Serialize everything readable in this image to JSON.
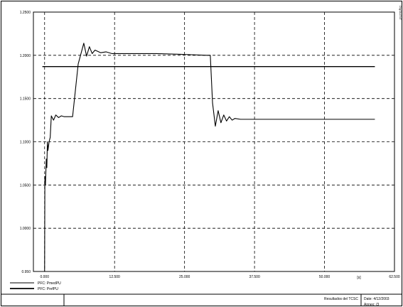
{
  "chart_data": {
    "type": "line",
    "title": "",
    "xlabel": "",
    "ylabel": "",
    "x_unit": "[s]",
    "xlim": [
      -2.0,
      62.5
    ],
    "ylim": [
      0.95,
      1.25
    ],
    "x_ticks": [
      0.0,
      12.5,
      25.0,
      37.5,
      50.0,
      62.5
    ],
    "x_tick_labels": [
      "0.000",
      "12.500",
      "25.000",
      "37.500",
      "50.000",
      "62.500"
    ],
    "y_ticks": [
      0.95,
      1.0,
      1.05,
      1.1,
      1.15,
      1.2,
      1.25
    ],
    "y_tick_labels": [
      "0.950",
      "1.0000",
      "1.0500",
      "1.1000",
      "1.1500",
      "1.2000",
      "1.2500"
    ],
    "grid": true,
    "legend_position": "bottom-left",
    "series": [
      {
        "name": "PFC: PmedPU",
        "color": "#000000",
        "x": [
          0.0,
          0.05,
          0.15,
          0.3,
          0.4,
          0.5,
          0.6,
          0.8,
          1.0,
          1.2,
          1.6,
          2.0,
          2.5,
          3.0,
          3.5,
          4.0,
          5.0,
          6.0,
          7.0,
          7.5,
          8.0,
          8.5,
          9.0,
          10.0,
          11.0,
          12.0,
          15.0,
          20.0,
          25.0,
          29.0,
          29.6,
          30.0,
          30.5,
          31.0,
          31.5,
          32.0,
          32.5,
          33.0,
          33.5,
          34.0,
          35.0,
          36.0,
          40.0,
          50.0,
          59.0
        ],
        "y": [
          0.95,
          1.06,
          1.05,
          1.08,
          1.07,
          1.1,
          1.09,
          1.1,
          1.105,
          1.13,
          1.125,
          1.131,
          1.128,
          1.13,
          1.129,
          1.129,
          1.129,
          1.19,
          1.214,
          1.199,
          1.21,
          1.202,
          1.206,
          1.203,
          1.204,
          1.202,
          1.202,
          1.202,
          1.201,
          1.2,
          1.2,
          1.145,
          1.118,
          1.136,
          1.122,
          1.131,
          1.124,
          1.129,
          1.125,
          1.127,
          1.126,
          1.126,
          1.126,
          1.126,
          1.126
        ]
      },
      {
        "name": "PFC: PrefPU",
        "color": "#000000",
        "x": [
          -0.4,
          59.0
        ],
        "y": [
          1.187,
          1.187
        ]
      }
    ]
  },
  "footer": {
    "plot_title": "Resultados del TCSC",
    "date": "Date:  4/12/2003",
    "annex": "Annex:   /3"
  },
  "corner_text": "DIgSILENT"
}
